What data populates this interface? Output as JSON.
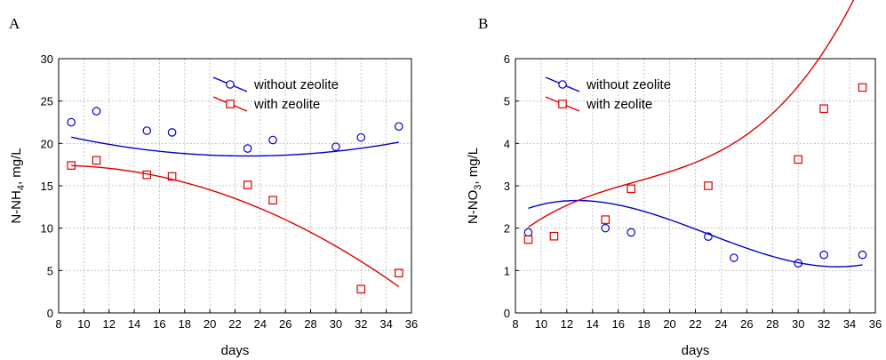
{
  "chart_data": [
    {
      "panel_label": "A",
      "type": "scatter",
      "xlabel": "days",
      "ylabel": {
        "main": "N-NH",
        "sub": "4",
        "rest": ", mg/L"
      },
      "xlim": [
        8,
        36
      ],
      "ylim": [
        0,
        30
      ],
      "xticks": [
        8,
        10,
        12,
        14,
        16,
        18,
        20,
        22,
        24,
        26,
        28,
        30,
        32,
        34,
        36
      ],
      "yticks": [
        0,
        5,
        10,
        15,
        20,
        25,
        30
      ],
      "grid": true,
      "legend_position": "top-right",
      "series": [
        {
          "name": "without zeolite",
          "marker": "circle",
          "color": "#0000cc",
          "x": [
            9,
            11,
            15,
            17,
            23,
            25,
            30,
            32,
            35
          ],
          "y": [
            22.5,
            23.8,
            21.5,
            21.3,
            19.4,
            20.4,
            19.6,
            20.7,
            22.0
          ],
          "fit": [
            24.5,
            -0.52,
            0.0113
          ]
        },
        {
          "name": "with zeolite",
          "marker": "square",
          "color": "#dd0000",
          "x": [
            9,
            11,
            15,
            17,
            23,
            25,
            32,
            35
          ],
          "y": [
            17.4,
            18.0,
            16.3,
            16.1,
            15.1,
            13.3,
            2.8,
            4.7
          ],
          "fit": [
            16.24,
            0.3,
            -0.0193
          ]
        }
      ]
    },
    {
      "panel_label": "B",
      "type": "scatter",
      "xlabel": "days",
      "ylabel": {
        "main": "N-NO",
        "sub": "3",
        "rest": ", mg/L"
      },
      "xlim": [
        8,
        36
      ],
      "ylim": [
        0,
        6
      ],
      "xticks": [
        8,
        10,
        12,
        14,
        16,
        18,
        20,
        22,
        24,
        26,
        28,
        30,
        32,
        34,
        36
      ],
      "yticks": [
        0,
        1,
        2,
        3,
        4,
        5,
        6
      ],
      "grid": true,
      "legend_position": "top-left",
      "series": [
        {
          "name": "without zeolite",
          "marker": "circle",
          "color": "#0000cc",
          "x": [
            9,
            15,
            17,
            23,
            25,
            30,
            32,
            35
          ],
          "y": [
            1.9,
            2.0,
            1.9,
            1.8,
            1.3,
            1.17,
            1.37,
            1.37
          ],
          "fit": [
            0.0,
            0.476,
            -0.0258,
            0.000375
          ]
        },
        {
          "name": "with zeolite",
          "marker": "square",
          "color": "#dd0000",
          "x": [
            9,
            11,
            15,
            17,
            23,
            30,
            32,
            35
          ],
          "y": [
            1.73,
            1.81,
            2.2,
            2.93,
            3.0,
            3.62,
            4.82,
            5.32
          ],
          "fit": [
            -1.52,
            0.623,
            -0.0308,
            0.000589
          ]
        }
      ]
    }
  ]
}
